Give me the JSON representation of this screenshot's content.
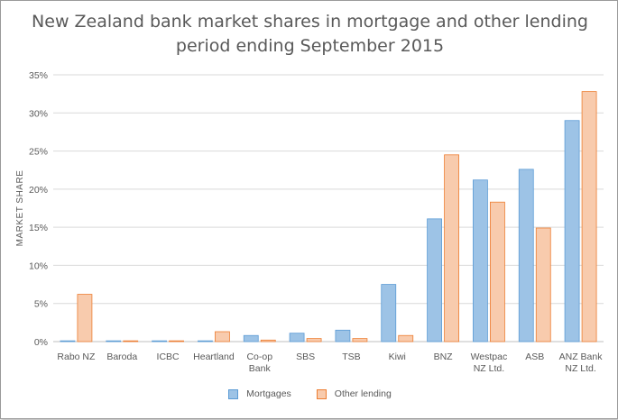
{
  "chart_data": {
    "type": "bar",
    "title_lines": [
      "New Zealand bank market shares in mortgage and other lending",
      "period ending September 2015"
    ],
    "ylabel": "MARKET SHARE",
    "xlabel": "",
    "ylim": [
      0,
      35
    ],
    "y_ticks": [
      "0%",
      "5%",
      "10%",
      "15%",
      "20%",
      "25%",
      "30%",
      "35%"
    ],
    "y_tick_values": [
      0,
      5,
      10,
      15,
      20,
      25,
      30,
      35
    ],
    "grid": true,
    "legend_position": "bottom",
    "categories": [
      [
        "Rabo NZ"
      ],
      [
        "Baroda"
      ],
      [
        "ICBC"
      ],
      [
        "Heartland"
      ],
      [
        "Co-op",
        "Bank"
      ],
      [
        "SBS"
      ],
      [
        "TSB"
      ],
      [
        "Kiwi"
      ],
      [
        "BNZ"
      ],
      [
        "Westpac",
        "NZ Ltd."
      ],
      [
        "ASB"
      ],
      [
        "ANZ Bank",
        "NZ Ltd."
      ]
    ],
    "series": [
      {
        "name": "Mortgages",
        "color": "#9dc3e6",
        "border": "#5b9bd5",
        "values": [
          0.1,
          0.1,
          0.1,
          0.1,
          0.8,
          1.1,
          1.5,
          7.5,
          16.1,
          21.2,
          22.6,
          29.0
        ]
      },
      {
        "name": "Other lending",
        "color": "#f8cbad",
        "border": "#ed7d31",
        "values": [
          6.2,
          0.1,
          0.1,
          1.3,
          0.2,
          0.4,
          0.4,
          0.8,
          24.5,
          18.3,
          14.9,
          32.8
        ]
      }
    ]
  }
}
